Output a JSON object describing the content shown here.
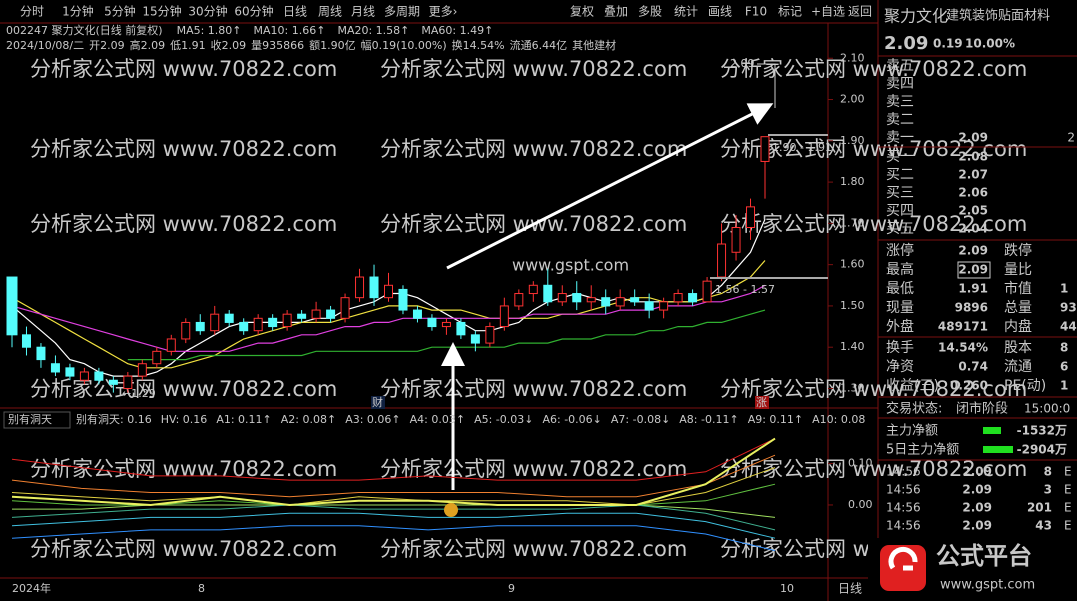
{
  "toolbar": {
    "periods": [
      "分时",
      "1分钟",
      "5分钟",
      "15分钟",
      "30分钟",
      "60分钟",
      "日线",
      "周线",
      "月线",
      "多周期",
      "更多›"
    ],
    "tools": [
      "复权",
      "叠加",
      "多股",
      "统计",
      "画线",
      "F10",
      "标记",
      "+自选",
      "返回"
    ]
  },
  "header": {
    "code_line": "002247 聚力文化(日线 前复权)",
    "ma_labels": [
      {
        "text": "MA5: 1.80↑",
        "color": "#ffffff"
      },
      {
        "text": "MA10: 1.66↑",
        "color": "#f0e040"
      },
      {
        "text": "MA20: 1.58↑",
        "color": "#e040e0"
      },
      {
        "text": "MA60: 1.49↑",
        "color": "#40c040"
      }
    ],
    "quote": [
      {
        "text": "2024/10/08/二",
        "color": "#c8c8c8"
      },
      {
        "text": "开2.09",
        "color": "#ff4040"
      },
      {
        "text": "高2.09",
        "color": "#ff4040"
      },
      {
        "text": "低1.91",
        "color": "#ff4040"
      },
      {
        "text": "收2.09",
        "color": "#ff4040"
      },
      {
        "text": "量935866",
        "color": "#f0e040"
      },
      {
        "text": "额1.90亿",
        "color": "#c8c8c8"
      },
      {
        "text": "幅0.19(10.00%)",
        "color": "#ff4040"
      },
      {
        "text": "换14.54%",
        "color": "#c8c8c8"
      },
      {
        "text": "流通6.44亿",
        "color": "#c8c8c8"
      },
      {
        "text": "其他建材",
        "color": "#f0e040"
      }
    ]
  },
  "main": {
    "ylim": [
      1.26,
      2.12
    ],
    "yticks": [
      {
        "value": 1.3,
        "label": "1.30"
      },
      {
        "value": 1.4,
        "label": "1.40"
      },
      {
        "value": 1.5,
        "label": "1.50"
      },
      {
        "value": 1.6,
        "label": "1.60"
      },
      {
        "value": 1.7,
        "label": "1.70"
      },
      {
        "value": 1.8,
        "label": "1.80"
      },
      {
        "value": 1.9,
        "label": "1.90"
      },
      {
        "value": 2.0,
        "label": "2.00"
      },
      {
        "value": 2.1,
        "label": "2.10"
      }
    ],
    "candles": [
      [
        1.57,
        1.43,
        1.57,
        1.4
      ],
      [
        1.43,
        1.4,
        1.45,
        1.38
      ],
      [
        1.4,
        1.37,
        1.41,
        1.35
      ],
      [
        1.36,
        1.34,
        1.38,
        1.33
      ],
      [
        1.35,
        1.33,
        1.36,
        1.32
      ],
      [
        1.32,
        1.34,
        1.35,
        1.31
      ],
      [
        1.34,
        1.32,
        1.35,
        1.31
      ],
      [
        1.32,
        1.31,
        1.33,
        1.29
      ],
      [
        1.3,
        1.33,
        1.34,
        1.29
      ],
      [
        1.33,
        1.36,
        1.37,
        1.32
      ],
      [
        1.36,
        1.39,
        1.4,
        1.35
      ],
      [
        1.39,
        1.42,
        1.43,
        1.38
      ],
      [
        1.42,
        1.46,
        1.47,
        1.41
      ],
      [
        1.46,
        1.44,
        1.48,
        1.43
      ],
      [
        1.44,
        1.48,
        1.5,
        1.43
      ],
      [
        1.48,
        1.46,
        1.49,
        1.45
      ],
      [
        1.46,
        1.44,
        1.47,
        1.43
      ],
      [
        1.44,
        1.47,
        1.48,
        1.43
      ],
      [
        1.47,
        1.45,
        1.48,
        1.44
      ],
      [
        1.45,
        1.48,
        1.49,
        1.44
      ],
      [
        1.48,
        1.47,
        1.49,
        1.46
      ],
      [
        1.47,
        1.49,
        1.51,
        1.46
      ],
      [
        1.49,
        1.47,
        1.5,
        1.46
      ],
      [
        1.47,
        1.52,
        1.53,
        1.46
      ],
      [
        1.52,
        1.57,
        1.59,
        1.51
      ],
      [
        1.57,
        1.52,
        1.6,
        1.5
      ],
      [
        1.52,
        1.55,
        1.58,
        1.51
      ],
      [
        1.54,
        1.49,
        1.55,
        1.48
      ],
      [
        1.49,
        1.47,
        1.5,
        1.46
      ],
      [
        1.47,
        1.45,
        1.48,
        1.44
      ],
      [
        1.45,
        1.46,
        1.47,
        1.43
      ],
      [
        1.46,
        1.43,
        1.47,
        1.42
      ],
      [
        1.43,
        1.41,
        1.44,
        1.39
      ],
      [
        1.41,
        1.45,
        1.46,
        1.4
      ],
      [
        1.45,
        1.5,
        1.52,
        1.44
      ],
      [
        1.5,
        1.53,
        1.54,
        1.49
      ],
      [
        1.53,
        1.55,
        1.56,
        1.51
      ],
      [
        1.55,
        1.51,
        1.59,
        1.5
      ],
      [
        1.51,
        1.53,
        1.55,
        1.5
      ],
      [
        1.53,
        1.51,
        1.56,
        1.49
      ],
      [
        1.51,
        1.52,
        1.55,
        1.49
      ],
      [
        1.52,
        1.5,
        1.54,
        1.48
      ],
      [
        1.5,
        1.52,
        1.54,
        1.49
      ],
      [
        1.52,
        1.51,
        1.54,
        1.5
      ],
      [
        1.51,
        1.49,
        1.53,
        1.47
      ],
      [
        1.49,
        1.51,
        1.52,
        1.47
      ],
      [
        1.51,
        1.53,
        1.54,
        1.5
      ],
      [
        1.53,
        1.51,
        1.54,
        1.5
      ],
      [
        1.51,
        1.56,
        1.57,
        1.51
      ],
      [
        1.57,
        1.65,
        1.7,
        1.56
      ],
      [
        1.63,
        1.69,
        1.72,
        1.61
      ],
      [
        1.69,
        1.74,
        1.76,
        1.66
      ],
      [
        1.85,
        1.91,
        1.91,
        1.76
      ]
    ],
    "ma": [
      {
        "color": "#ffffff",
        "values": [
          1.5,
          1.47,
          1.44,
          1.41,
          1.37,
          1.36,
          1.34,
          1.33,
          1.33,
          1.33,
          1.34,
          1.36,
          1.39,
          1.41,
          1.43,
          1.45,
          1.46,
          1.46,
          1.46,
          1.46,
          1.46,
          1.47,
          1.47,
          1.49,
          1.5,
          1.51,
          1.53,
          1.53,
          1.52,
          1.5,
          1.48,
          1.46,
          1.44,
          1.44,
          1.45,
          1.46,
          1.49,
          1.51,
          1.52,
          1.53,
          1.52,
          1.51,
          1.52,
          1.51,
          1.51,
          1.51,
          1.51,
          1.51,
          1.52,
          1.55,
          1.59,
          1.63,
          1.71
        ]
      },
      {
        "color": "#f0e040",
        "values": [
          1.52,
          1.5,
          1.48,
          1.46,
          1.44,
          1.42,
          1.4,
          1.38,
          1.36,
          1.35,
          1.35,
          1.35,
          1.36,
          1.37,
          1.38,
          1.4,
          1.42,
          1.43,
          1.44,
          1.45,
          1.46,
          1.46,
          1.46,
          1.47,
          1.48,
          1.49,
          1.5,
          1.5,
          1.5,
          1.49,
          1.49,
          1.49,
          1.48,
          1.47,
          1.47,
          1.47,
          1.47,
          1.47,
          1.48,
          1.48,
          1.49,
          1.5,
          1.51,
          1.52,
          1.52,
          1.51,
          1.51,
          1.51,
          1.52,
          1.53,
          1.55,
          1.57,
          1.61
        ]
      },
      {
        "color": "#e040e0",
        "values": [
          1.5,
          1.49,
          1.48,
          1.47,
          1.46,
          1.45,
          1.44,
          1.43,
          1.42,
          1.41,
          1.4,
          1.39,
          1.39,
          1.39,
          1.39,
          1.39,
          1.4,
          1.41,
          1.41,
          1.42,
          1.43,
          1.43,
          1.44,
          1.45,
          1.45,
          1.46,
          1.46,
          1.47,
          1.47,
          1.47,
          1.47,
          1.47,
          1.47,
          1.47,
          1.47,
          1.47,
          1.48,
          1.48,
          1.48,
          1.48,
          1.48,
          1.48,
          1.49,
          1.49,
          1.49,
          1.5,
          1.5,
          1.5,
          1.51,
          1.51,
          1.52,
          1.53,
          1.55
        ]
      },
      {
        "color": "#30b030",
        "values": [
          null,
          null,
          null,
          null,
          null,
          null,
          null,
          null,
          1.37,
          1.37,
          1.37,
          1.37,
          1.37,
          1.38,
          1.38,
          1.38,
          1.38,
          1.38,
          1.38,
          1.38,
          1.38,
          1.39,
          1.39,
          1.39,
          1.39,
          1.39,
          1.39,
          1.39,
          1.39,
          1.4,
          1.4,
          1.4,
          1.4,
          1.4,
          1.4,
          1.41,
          1.41,
          1.41,
          1.42,
          1.42,
          1.42,
          1.43,
          1.43,
          1.43,
          1.44,
          1.44,
          1.45,
          1.45,
          1.46,
          1.46,
          1.47,
          1.48,
          1.49
        ]
      }
    ],
    "annotations": {
      "low": "←1.29",
      "box_high": "1.90 - 1.91",
      "box_low": "1.56 - 1.57",
      "top": "2.09",
      "cai": "财",
      "zhang": "涨"
    },
    "watermark": "分析家公式网 www.70822.com",
    "center_mark": "www.gspt.com"
  },
  "indicator": {
    "name": "别有洞天",
    "ylim": [
      -0.176,
      0.224
    ],
    "yticks": [
      {
        "value": 0.1,
        "label": "0.10"
      },
      {
        "value": 0,
        "label": "0.00"
      }
    ],
    "legend": [
      {
        "text": "别有洞天: 0.16",
        "color": "#f0e040"
      },
      {
        "text": "HV: 0.16",
        "color": "#40e040"
      },
      {
        "text": "A1: 0.11↑",
        "color": "#ff4040"
      },
      {
        "text": "A2: 0.08↑",
        "color": "#40d0e0"
      },
      {
        "text": "A3: 0.06↑",
        "color": "#40e040"
      },
      {
        "text": "A4: 0.03↑",
        "color": "#f0e040"
      },
      {
        "text": "A5: -0.03↓",
        "color": "#c8c8c8"
      },
      {
        "text": "A6: -0.06↓",
        "color": "#40e040"
      },
      {
        "text": "A7: -0.08↓",
        "color": "#80e0ff"
      },
      {
        "text": "A8: -0.11↑",
        "color": "#ff6080"
      },
      {
        "text": "A9: 0.11↑",
        "color": "#ff4040"
      },
      {
        "text": "A10: 0.08",
        "color": "#40d0e0"
      }
    ],
    "series": [
      {
        "color": "#e02020",
        "values": [
          0.11,
          0.09,
          0.07,
          0.07,
          0.06,
          0.06,
          0.07,
          0.06,
          0.06,
          0.06,
          0.08,
          0.16
        ]
      },
      {
        "color": "#f08030",
        "values": [
          0.06,
          0.04,
          0.03,
          0.03,
          0.02,
          0.03,
          0.03,
          0.03,
          0.02,
          0.02,
          0.05,
          0.12
        ]
      },
      {
        "color": "#e0d040",
        "values": [
          0.03,
          0.02,
          0.01,
          0.02,
          0.0,
          0.02,
          0.01,
          0.01,
          0.01,
          0.0,
          0.03,
          0.09
        ]
      },
      {
        "color": "#60c040",
        "values": [
          0.01,
          0.0,
          0.0,
          0.01,
          0.0,
          0.01,
          0.01,
          0.0,
          0.0,
          0.0,
          0.01,
          0.05
        ]
      },
      {
        "color": "#a0e060",
        "values": [
          -0.01,
          -0.01,
          0.0,
          0.0,
          0.0,
          0.0,
          0.0,
          0.0,
          0.0,
          0.0,
          -0.01,
          -0.03
        ]
      },
      {
        "color": "#40b090",
        "values": [
          -0.03,
          -0.02,
          -0.01,
          -0.01,
          0.0,
          -0.01,
          -0.01,
          -0.01,
          -0.01,
          0.0,
          -0.02,
          -0.06
        ]
      },
      {
        "color": "#40c0e0",
        "values": [
          -0.05,
          -0.04,
          -0.03,
          -0.03,
          -0.02,
          -0.02,
          -0.03,
          -0.03,
          -0.02,
          -0.02,
          -0.04,
          -0.08
        ]
      },
      {
        "color": "#3090ff",
        "values": [
          -0.08,
          -0.07,
          -0.06,
          -0.06,
          -0.05,
          -0.05,
          -0.06,
          -0.05,
          -0.05,
          -0.05,
          -0.07,
          -0.11
        ]
      },
      {
        "color": "#e8f060",
        "values": [
          0.02,
          0.01,
          0.0,
          0.02,
          0.0,
          0.01,
          0.01,
          0.0,
          0.0,
          0.0,
          0.05,
          0.16
        ]
      }
    ]
  },
  "date_axis": [
    "2024年",
    "8",
    "9",
    "10"
  ],
  "period_label": "日线",
  "panel": {
    "name": "聚力文化",
    "industry": "建筑装饰贴面材料",
    "price": "2.09",
    "change": "0.19",
    "pct": "10.00%",
    "sells": [
      [
        "卖五"
      ],
      [
        "卖四"
      ],
      [
        "卖三"
      ],
      [
        "卖二"
      ],
      [
        "卖一",
        "2.09",
        "2"
      ]
    ],
    "buys": [
      [
        "买一",
        "2.08"
      ],
      [
        "买二",
        "2.07"
      ],
      [
        "买三",
        "2.06"
      ],
      [
        "买四",
        "2.05"
      ],
      [
        "买五",
        "2.04"
      ]
    ],
    "stats": [
      [
        "涨停",
        "2.09",
        "跌停"
      ],
      [
        "最高",
        "2.09",
        "量比"
      ],
      [
        "最低",
        "1.91",
        "市值",
        "1"
      ],
      [
        "现量",
        "9896",
        "总量",
        "93"
      ],
      [
        "外盘",
        "489171",
        "内盘",
        "44"
      ],
      [
        "换手",
        "14.54%",
        "股本",
        "8"
      ],
      [
        "净资",
        "0.74",
        "流通",
        "6"
      ],
      [
        "收益(三)",
        "0.260",
        "PE(动)",
        "1"
      ]
    ],
    "status": [
      "交易状态:",
      "闭市阶段",
      "15:00:0"
    ],
    "flows": [
      [
        "主力净额",
        "-1532万"
      ],
      [
        "5日主力净额",
        "-2904万"
      ]
    ],
    "trades": [
      [
        "14:56",
        "2.09",
        "8",
        "E"
      ],
      [
        "14:56",
        "2.09",
        "3",
        "E"
      ],
      [
        "14:56",
        "2.09",
        "201",
        "E"
      ],
      [
        "14:56",
        "2.09",
        "43",
        "E"
      ]
    ]
  },
  "logo": {
    "title": "公式平台",
    "url": "www.gspt.com"
  }
}
